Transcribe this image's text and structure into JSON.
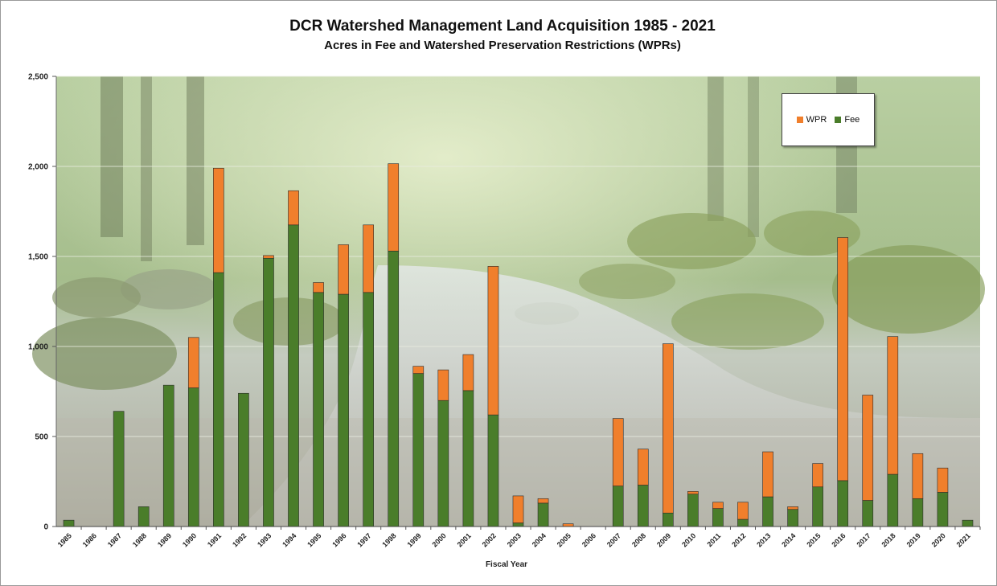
{
  "chart_data": {
    "type": "bar",
    "stacked": true,
    "title": "DCR Watershed Management Land Acquisition 1985 - 2021",
    "subtitle": "Acres in Fee and Watershed Preservation Restrictions (WPRs)",
    "xlabel": "Fiscal Year",
    "ylabel": "",
    "ylim": [
      0,
      2500
    ],
    "yticks": [
      0,
      500,
      1000,
      1500,
      2000,
      2500
    ],
    "ytick_labels": [
      "0",
      "500",
      "1,000",
      "1,500",
      "2,000",
      "2,500"
    ],
    "grid": true,
    "legend_position": "top-right",
    "background": "forest stream photograph",
    "categories": [
      "1985",
      "1986",
      "1987",
      "1988",
      "1989",
      "1990",
      "1991",
      "1992",
      "1993",
      "1994",
      "1995",
      "1996",
      "1997",
      "1998",
      "1999",
      "2000",
      "2001",
      "2002",
      "2003",
      "2004",
      "2005",
      "2006",
      "2007",
      "2008",
      "2009",
      "2010",
      "2011",
      "2012",
      "2013",
      "2014",
      "2015",
      "2016",
      "2017",
      "2018",
      "2019",
      "2020",
      "2021"
    ],
    "series": [
      {
        "name": "Fee",
        "color": "#4a7d2a",
        "values": [
          35,
          0,
          640,
          110,
          785,
          770,
          1410,
          740,
          1490,
          1675,
          1300,
          1290,
          1300,
          1530,
          850,
          700,
          755,
          620,
          20,
          130,
          0,
          0,
          225,
          230,
          75,
          180,
          100,
          40,
          165,
          95,
          220,
          255,
          145,
          290,
          155,
          190,
          35
        ]
      },
      {
        "name": "WPR",
        "color": "#f07f2c",
        "values": [
          0,
          0,
          0,
          0,
          0,
          280,
          580,
          0,
          15,
          190,
          55,
          275,
          375,
          485,
          40,
          170,
          200,
          825,
          150,
          25,
          15,
          0,
          375,
          200,
          940,
          15,
          35,
          95,
          250,
          15,
          130,
          1350,
          585,
          765,
          250,
          135,
          0
        ]
      }
    ]
  },
  "legend": {
    "wpr_label": "WPR",
    "fee_label": "Fee",
    "wpr_color": "#f07f2c",
    "fee_color": "#4a7d2a"
  }
}
